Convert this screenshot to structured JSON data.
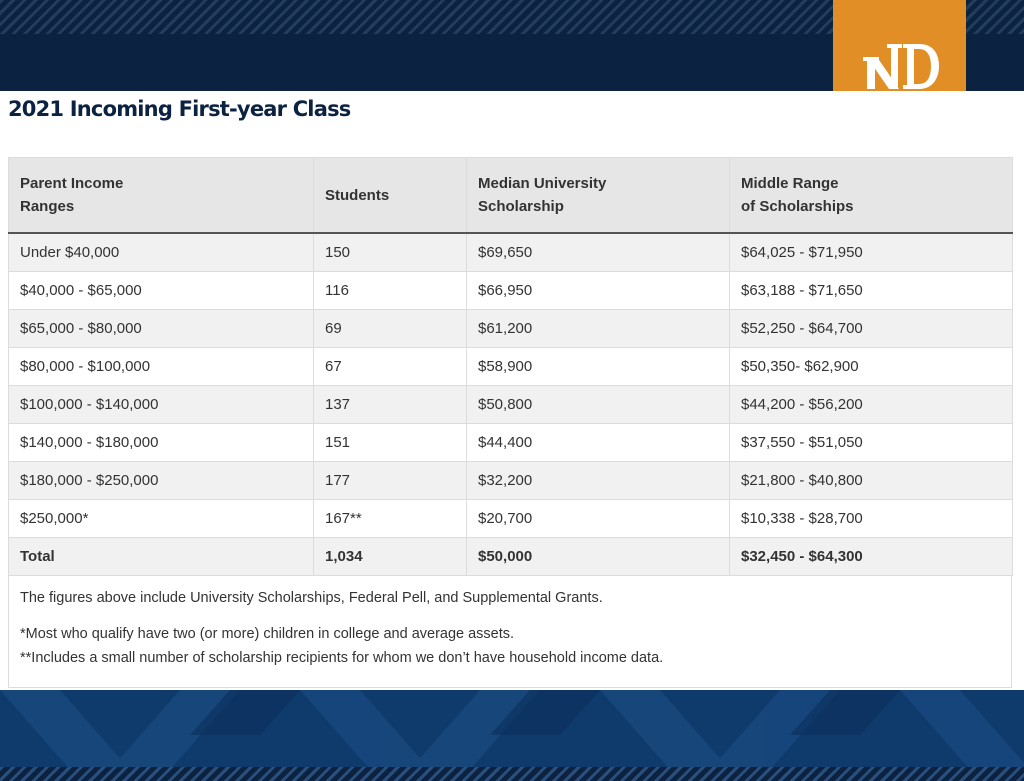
{
  "page": {
    "title": "2021 Incoming First-year Class"
  },
  "logo": {
    "text": "ND",
    "icon": "notre-dame-monogram-icon",
    "color": "#e18e27"
  },
  "colors": {
    "navy": "#0b2240",
    "gold": "#e18e27",
    "banner_blue": "#0e3a6c"
  },
  "table": {
    "columns": [
      "Parent Income Ranges",
      "Students",
      "Median University Scholarship",
      "Middle Range of Scholarships"
    ],
    "column_lines": [
      [
        "Parent Income",
        "Ranges"
      ],
      [
        "Students"
      ],
      [
        "Median University",
        "Scholarship"
      ],
      [
        "Middle Range",
        "of Scholarships"
      ]
    ],
    "rows": [
      [
        "Under $40,000",
        "150",
        "$69,650",
        "$64,025 - $71,950"
      ],
      [
        "$40,000 - $65,000",
        "116",
        "$66,950",
        "$63,188 - $71,650"
      ],
      [
        "$65,000 - $80,000",
        "69",
        "$61,200",
        "$52,250 - $64,700"
      ],
      [
        "$80,000 - $100,000",
        "67",
        "$58,900",
        "$50,350- $62,900"
      ],
      [
        "$100,000 - $140,000",
        "137",
        "$50,800",
        "$44,200 - $56,200"
      ],
      [
        "$140,000 - $180,000",
        "151",
        "$44,400",
        "$37,550 - $51,050"
      ],
      [
        "$180,000 - $250,000",
        "177",
        "$32,200",
        "$21,800 - $40,800"
      ],
      [
        "$250,000*",
        "167**",
        "$20,700",
        "$10,338 - $28,700"
      ]
    ],
    "total": [
      "Total",
      "1,034",
      "$50,000",
      "$32,450 - $64,300"
    ]
  },
  "notes": {
    "line1": "The figures above include University Scholarships, Federal Pell, and Supplemental Grants.",
    "line2": "*Most who qualify have two (or more) children in college and average assets.",
    "line3": "**Includes a small number of scholarship recipients for whom we don’t have household income data."
  }
}
